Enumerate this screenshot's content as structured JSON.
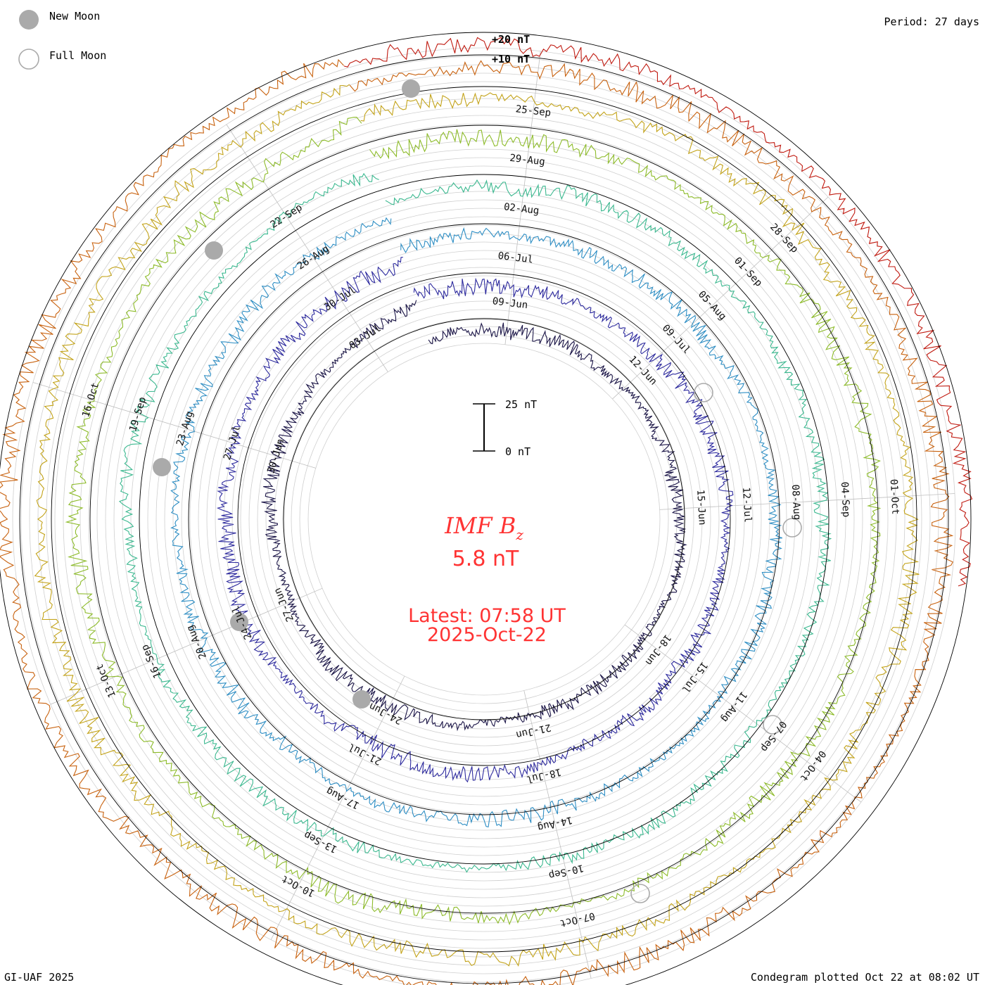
{
  "legend": {
    "new_moon_label": "New Moon",
    "full_moon_label": "Full Moon",
    "new_moon_color": "#aaaaaa",
    "full_moon_color": "#aaaaaa"
  },
  "header": {
    "period": "Period: 27 days"
  },
  "footer": {
    "credit": "GI-UAF 2025",
    "plotted": "Condegram plotted Oct 22 at 08:02 UT"
  },
  "center": {
    "quantity": "IMF B",
    "subscript": "z",
    "value": "5.8 nT",
    "latest_label": "Latest: 07:58 UT",
    "latest_date": "2025-Oct-22",
    "text_color": "#ff3333"
  },
  "chart_data": {
    "type": "condegram",
    "title": "IMF Bz",
    "period_days": 27,
    "scale_bar": {
      "top_label": "25 nT",
      "bottom_label": "0 nT",
      "top_value": 25,
      "bottom_value": 0
    },
    "ring_scale_labels": [
      "+20 nT",
      "+10 nT"
    ],
    "series": [
      {
        "name": "cycle-1",
        "start": "2025-06-10",
        "end": "2025-07-07",
        "color": "#1b1547",
        "date_labels": [
          "09-Jun",
          "12-Jun",
          "15-Jun",
          "18-Jun",
          "21-Jun",
          "24-Jun",
          "27-Jun",
          "30-Jun",
          "03-Jul"
        ]
      },
      {
        "name": "cycle-2",
        "start": "2025-07-07",
        "end": "2025-08-03",
        "color": "#2d2a9e",
        "date_labels": [
          "06-Jul",
          "09-Jul",
          "12-Jul",
          "15-Jul",
          "18-Jul",
          "21-Jul",
          "24-Jul",
          "27-Jul",
          "30-Jul"
        ]
      },
      {
        "name": "cycle-3",
        "start": "2025-08-03",
        "end": "2025-08-30",
        "color": "#2e8ec4",
        "date_labels": [
          "02-Aug",
          "05-Aug",
          "08-Aug",
          "11-Aug",
          "14-Aug",
          "17-Aug",
          "20-Aug",
          "23-Aug",
          "26-Aug"
        ]
      },
      {
        "name": "cycle-4",
        "start": "2025-08-30",
        "end": "2025-09-26",
        "color": "#3bb88f",
        "date_labels": [
          "29-Aug",
          "01-Sep",
          "04-Sep",
          "07-Sep",
          "10-Sep",
          "13-Sep",
          "16-Sep",
          "19-Sep",
          "22-Sep"
        ]
      },
      {
        "name": "cycle-5",
        "start": "2025-09-26",
        "end": "2025-10-22",
        "color": "#8dbb2a",
        "date_labels": [
          "25-Sep",
          "28-Sep",
          "01-Oct",
          "04-Oct",
          "07-Oct",
          "10-Oct",
          "13-Oct",
          "16-Oct"
        ]
      },
      {
        "name": "cycle-6",
        "start": "2025-09-26",
        "end": "2025-10-22",
        "color": "#c3a31a",
        "date_labels": []
      },
      {
        "name": "cycle-7",
        "start": "2025-09-26",
        "end": "2025-10-22",
        "color": "#c8620f",
        "date_labels": []
      },
      {
        "name": "cycle-8",
        "start": "2025-10-15",
        "end": "2025-10-22",
        "color": "#c01a10",
        "date_labels": []
      }
    ],
    "ylim": [
      -25,
      25
    ],
    "units": "nT"
  }
}
